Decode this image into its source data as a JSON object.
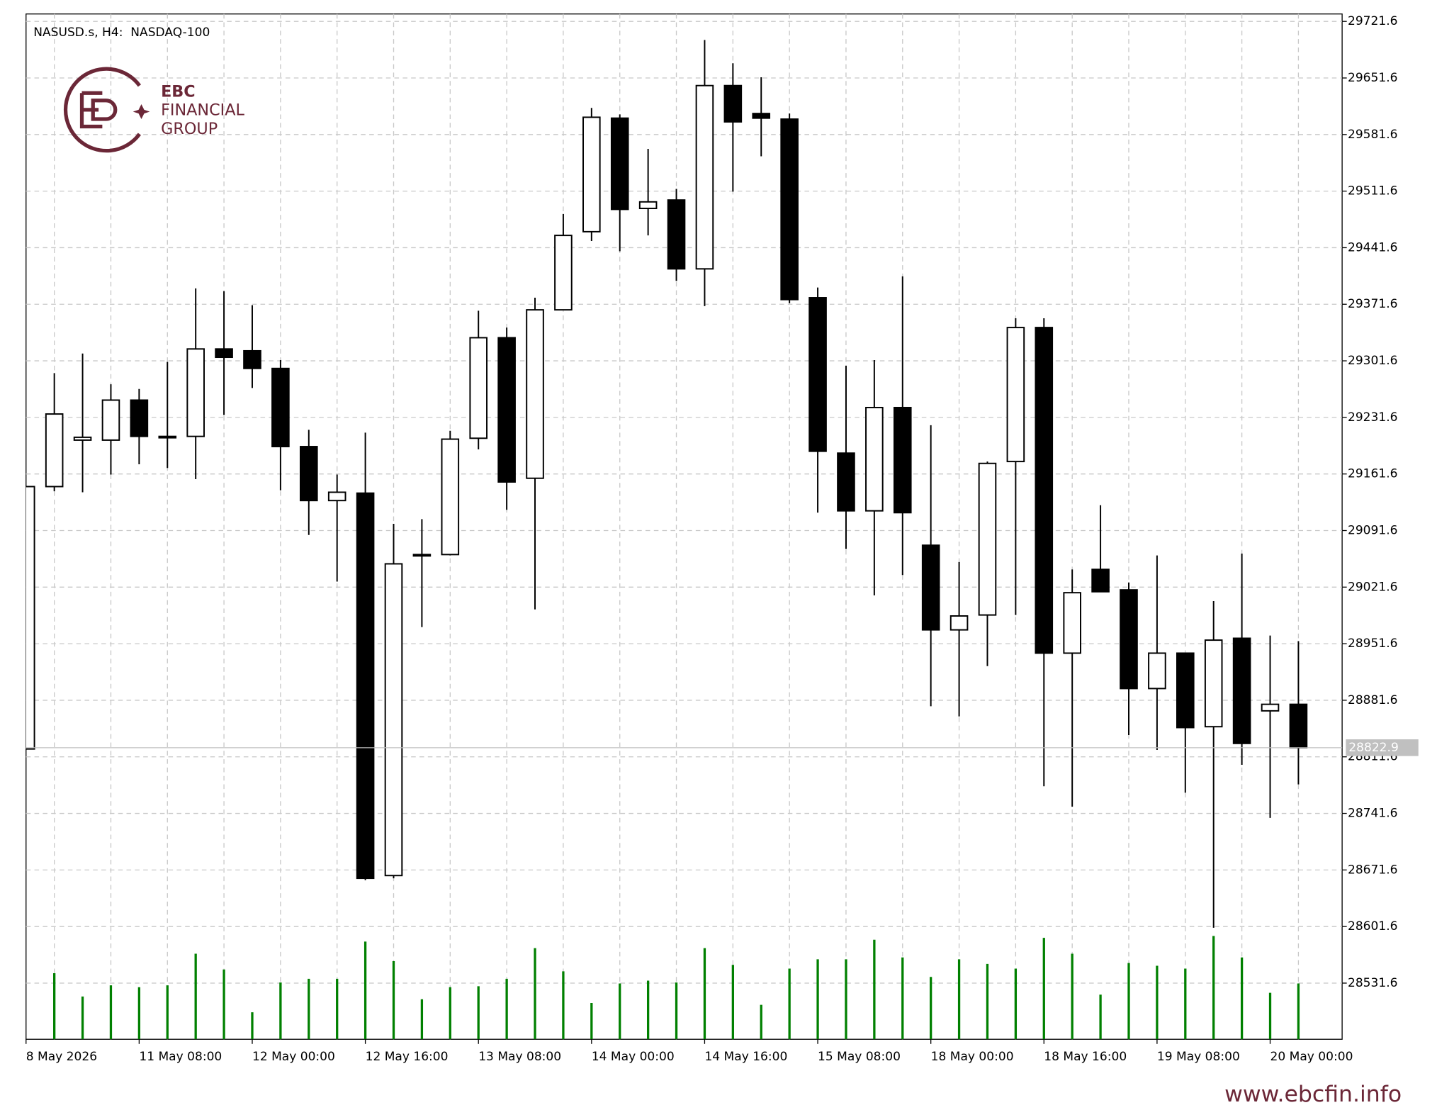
{
  "chart_data": {
    "type": "candlestick",
    "title": "NASUSD.s, H4:  NASDAQ-100",
    "categories": [
      "8 May 2026",
      null,
      null,
      null,
      "11 May 08:00",
      null,
      null,
      null,
      "12 May 00:00",
      null,
      null,
      null,
      "12 May 16:00",
      null,
      null,
      null,
      "13 May 08:00",
      null,
      null,
      null,
      "14 May 00:00",
      null,
      null,
      null,
      "14 May 16:00",
      null,
      null,
      null,
      "15 May 08:00",
      null,
      null,
      null,
      "18 May 00:00",
      null,
      null,
      null,
      "18 May 16:00",
      null,
      null,
      null,
      "19 May 08:00",
      null,
      null,
      null,
      "20 May 00:00",
      null
    ],
    "open": [
      28821.3,
      29146.0,
      29203.5,
      29203.5,
      29253.0,
      29208.1,
      29208.1,
      29316.3,
      29314.0,
      29292.2,
      29195.5,
      29128.7,
      29137.9,
      28664.7,
      29060.8,
      29061.9,
      29205.8,
      29330.2,
      29156.3,
      29364.7,
      29461.4,
      29601.9,
      29490.2,
      29500.6,
      29415.4,
      29642.2,
      29607.6,
      29600.7,
      29379.7,
      29187.4,
      29116.0,
      29243.8,
      29073.4,
      28968.7,
      28987.1,
      29177.0,
      29342.8,
      28939.9,
      29043.5,
      29018.2,
      28896.1,
      28939.9,
      28848.9,
      28958.3,
      28868.5,
      28876.6
    ],
    "high": [
      29146.0,
      29286.4,
      29310.6,
      29272.6,
      29266.8,
      29300.2,
      29391.2,
      29387.7,
      29370.5,
      29302.5,
      29216.2,
      29160.9,
      29212.7,
      29099.9,
      29105.7,
      29215.0,
      29363.6,
      29342.8,
      29379.7,
      29483.3,
      29614.5,
      29606.5,
      29563.9,
      29514.4,
      29698.6,
      29669.8,
      29652.5,
      29607.6,
      29392.3,
      29295.6,
      29302.5,
      29406.1,
      29221.9,
      29052.7,
      29177.0,
      29354.3,
      29354.3,
      29043.5,
      29122.9,
      29027.4,
      29060.8,
      28939.9,
      29004.3,
      29063.1,
      28961.7,
      28954.8
    ],
    "low": [
      28821.3,
      29140.2,
      29139.0,
      29160.9,
      29173.6,
      29169.0,
      29155.2,
      29234.6,
      29268.0,
      29141.4,
      29086.1,
      29028.5,
      28659.0,
      28661.3,
      28972.1,
      29060.8,
      29192.0,
      29117.2,
      28994.0,
      29364.7,
      29449.9,
      29437.2,
      29456.8,
      29400.4,
      29369.3,
      29510.9,
      29554.7,
      29372.8,
      29113.7,
      29068.8,
      29011.3,
      29036.6,
      28874.2,
      28861.6,
      28923.8,
      28987.1,
      28775.2,
      28749.9,
      29015.9,
      28838.6,
      28820.1,
      28767.2,
      28600.1,
      28801.7,
      28736.1,
      28777.5
    ],
    "close": [
      29146.0,
      29235.8,
      29207.0,
      29253.0,
      29208.1,
      29208.1,
      29316.3,
      29306.0,
      29292.2,
      29195.5,
      29128.7,
      29139.0,
      28661.3,
      29050.4,
      29061.9,
      29204.7,
      29330.2,
      29151.7,
      29364.7,
      29456.8,
      29603.0,
      29489.0,
      29498.3,
      29415.4,
      29642.2,
      29597.3,
      29601.9,
      29377.4,
      29189.7,
      29116.0,
      29243.8,
      29113.7,
      28968.7,
      28985.9,
      29174.7,
      29342.8,
      28939.9,
      29014.7,
      29015.9,
      28896.1,
      28939.9,
      28847.8,
      28956.0,
      28828.2,
      28876.6,
      28822.9
    ],
    "volumes": [
      null,
      71,
      46,
      58,
      56,
      58,
      92,
      75,
      29,
      61,
      65,
      65,
      105,
      84,
      43,
      56,
      57,
      65,
      98,
      73,
      39,
      60,
      63,
      61,
      98,
      80,
      37,
      76,
      86,
      86,
      107,
      88,
      67,
      86,
      81,
      76,
      109,
      92,
      48,
      82,
      79,
      76,
      111,
      88,
      50,
      60
    ],
    "up_color": "#ffffff",
    "down_color": "#000000",
    "volume_color": "#008000",
    "last_price": 28822.9,
    "ylim": [
      28462.1,
      29730.8
    ],
    "yticks": [
      29721.6,
      29651.6,
      29581.6,
      29511.6,
      29441.6,
      29371.6,
      29301.6,
      29231.6,
      29161.6,
      29091.6,
      29021.6,
      28951.6,
      28881.6,
      28811.6,
      28741.6,
      28671.6,
      28601.6,
      28531.6
    ],
    "grid": true
  },
  "branding": {
    "logo": [
      "EBC",
      "FINANCIAL",
      "GROUP"
    ],
    "url": "www.ebcfin.info"
  }
}
